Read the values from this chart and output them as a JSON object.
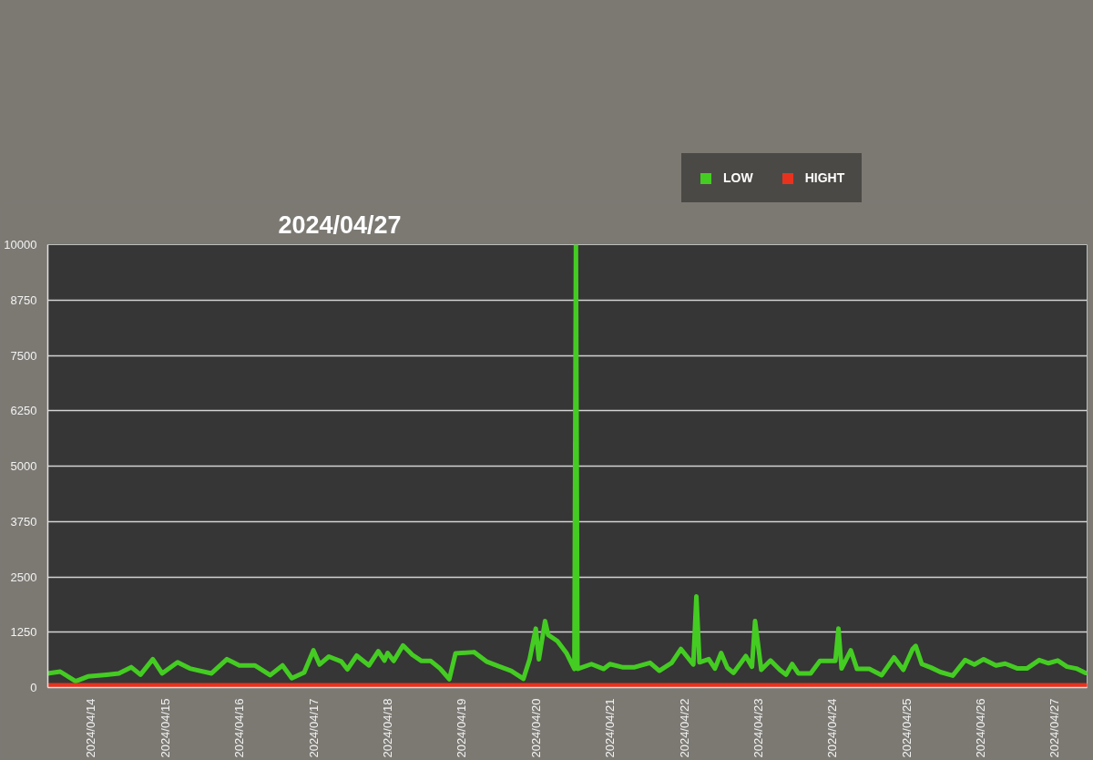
{
  "chart_data": {
    "type": "line",
    "title": "2024/04/27",
    "x": [
      "2024-04-13T10:00",
      "2024-04-13T14:00",
      "2024-04-13T19:00",
      "2024-04-13T23:00",
      "2024-04-14T05:00",
      "2024-04-14T09:00",
      "2024-04-14T13:00",
      "2024-04-14T16:00",
      "2024-04-14T20:00",
      "2024-04-14T23:00",
      "2024-04-15T04:00",
      "2024-04-15T08:00",
      "2024-04-15T15:00",
      "2024-04-15T20:00",
      "2024-04-16T00:00",
      "2024-04-16T05:00",
      "2024-04-16T10:00",
      "2024-04-16T14:00",
      "2024-04-16T17:00",
      "2024-04-16T21:00",
      "2024-04-17T00:00",
      "2024-04-17T02:00",
      "2024-04-17T05:00",
      "2024-04-17T09:00",
      "2024-04-17T11:00",
      "2024-04-17T14:00",
      "2024-04-17T18:00",
      "2024-04-17T21:00",
      "2024-04-17T23:00",
      "2024-04-18T00:00",
      "2024-04-18T02:00",
      "2024-04-18T05:00",
      "2024-04-18T08:00",
      "2024-04-18T11:00",
      "2024-04-18T14:00",
      "2024-04-18T17:00",
      "2024-04-18T20:00",
      "2024-04-18T22:00",
      "2024-04-19T04:00",
      "2024-04-19T08:00",
      "2024-04-19T12:00",
      "2024-04-19T16:00",
      "2024-04-19T20:00",
      "2024-04-19T22:00",
      "2024-04-20T00:00",
      "2024-04-20T01:00",
      "2024-04-20T03:00",
      "2024-04-20T04:00",
      "2024-04-20T07:00",
      "2024-04-20T10:00",
      "2024-04-20T12:30",
      "2024-04-20T13:00",
      "2024-04-20T13:30",
      "2024-04-20T18:00",
      "2024-04-20T22:00",
      "2024-04-21T00:00",
      "2024-04-21T04:00",
      "2024-04-21T08:00",
      "2024-04-21T13:00",
      "2024-04-21T16:00",
      "2024-04-21T20:00",
      "2024-04-21T23:00",
      "2024-04-22T03:00",
      "2024-04-22T04:00",
      "2024-04-22T05:00",
      "2024-04-22T08:00",
      "2024-04-22T10:00",
      "2024-04-22T12:00",
      "2024-04-22T14:00",
      "2024-04-22T16:00",
      "2024-04-22T20:00",
      "2024-04-22T22:00",
      "2024-04-22T23:00",
      "2024-04-23T01:00",
      "2024-04-23T04:00",
      "2024-04-23T07:00",
      "2024-04-23T09:00",
      "2024-04-23T11:00",
      "2024-04-23T13:00",
      "2024-04-23T17:00",
      "2024-04-23T20:00",
      "2024-04-23T23:00",
      "2024-04-24T01:00",
      "2024-04-24T02:00",
      "2024-04-24T03:00",
      "2024-04-24T06:00",
      "2024-04-24T08:00",
      "2024-04-24T12:00",
      "2024-04-24T16:00",
      "2024-04-24T20:00",
      "2024-04-24T23:00",
      "2024-04-25T02:00",
      "2024-04-25T03:00",
      "2024-04-25T05:00",
      "2024-04-25T08:00",
      "2024-04-25T11:00",
      "2024-04-25T15:00",
      "2024-04-25T19:00",
      "2024-04-25T22:00",
      "2024-04-26T01:00",
      "2024-04-26T05:00",
      "2024-04-26T08:00",
      "2024-04-26T12:00",
      "2024-04-26T15:00",
      "2024-04-26T19:00",
      "2024-04-26T22:00",
      "2024-04-27T01:00",
      "2024-04-27T04:00",
      "2024-04-27T07:00",
      "2024-04-27T10:00"
    ],
    "series": [
      {
        "name": "LOW",
        "color": "#44cc22",
        "values": [
          320,
          360,
          140,
          250,
          290,
          320,
          460,
          290,
          640,
          320,
          570,
          430,
          320,
          640,
          500,
          500,
          280,
          500,
          210,
          340,
          840,
          520,
          700,
          590,
          410,
          720,
          500,
          820,
          610,
          780,
          600,
          950,
          740,
          600,
          600,
          430,
          190,
          770,
          800,
          590,
          480,
          380,
          200,
          640,
          1330,
          640,
          1500,
          1190,
          1050,
          770,
          420,
          10000,
          420,
          530,
          420,
          530,
          460,
          460,
          560,
          380,
          560,
          870,
          520,
          2060,
          570,
          640,
          430,
          780,
          450,
          330,
          710,
          470,
          1500,
          400,
          610,
          400,
          290,
          530,
          320,
          320,
          600,
          600,
          600,
          1330,
          430,
          840,
          420,
          420,
          280,
          680,
          400,
          870,
          940,
          530,
          450,
          350,
          270,
          620,
          520,
          640,
          500,
          540,
          430,
          430,
          620,
          550,
          610,
          470,
          430,
          330
        ]
      },
      {
        "name": "HIGHT",
        "color": "#e8321e",
        "x": [
          "2024-04-13T10:00",
          "2024-04-27T10:00"
        ],
        "values": [
          50,
          50
        ]
      }
    ],
    "xlim": [
      "2024-04-13T10:00",
      "2024-04-27T10:30"
    ],
    "xticks": [
      {
        "value": "2024-04-14",
        "label": "2024/04/14"
      },
      {
        "value": "2024-04-15",
        "label": "2024/04/15"
      },
      {
        "value": "2024-04-16",
        "label": "2024/04/16"
      },
      {
        "value": "2024-04-17",
        "label": "2024/04/17"
      },
      {
        "value": "2024-04-18",
        "label": "2024/04/18"
      },
      {
        "value": "2024-04-19",
        "label": "2024/04/19"
      },
      {
        "value": "2024-04-20",
        "label": "2024/04/20"
      },
      {
        "value": "2024-04-21",
        "label": "2024/04/21"
      },
      {
        "value": "2024-04-22",
        "label": "2024/04/22"
      },
      {
        "value": "2024-04-23",
        "label": "2024/04/23"
      },
      {
        "value": "2024-04-24",
        "label": "2024/04/24"
      },
      {
        "value": "2024-04-25",
        "label": "2024/04/25"
      },
      {
        "value": "2024-04-26",
        "label": "2024/04/26"
      },
      {
        "value": "2024-04-27",
        "label": "2024/04/27"
      }
    ],
    "ylim": [
      0,
      10000
    ],
    "yticks": [
      0,
      1250,
      2500,
      3750,
      5000,
      6250,
      7500,
      8750,
      10000
    ],
    "grid": "y",
    "legend": "top right"
  }
}
